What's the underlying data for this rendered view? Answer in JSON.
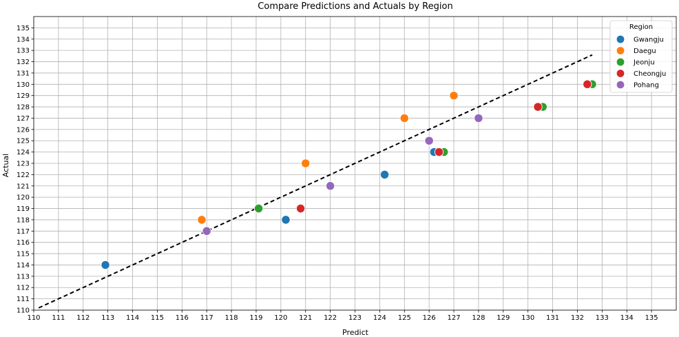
{
  "chart_data": {
    "type": "scatter",
    "title": "Compare Predictions and Actuals by Region",
    "xlabel": "Predict",
    "ylabel": "Actual",
    "xlim": [
      110,
      136
    ],
    "ylim": [
      110,
      136
    ],
    "xticks": [
      110,
      111,
      112,
      113,
      114,
      115,
      116,
      117,
      118,
      119,
      120,
      121,
      122,
      123,
      124,
      125,
      126,
      127,
      128,
      129,
      130,
      131,
      132,
      133,
      134,
      135
    ],
    "yticks": [
      110,
      111,
      112,
      113,
      114,
      115,
      116,
      117,
      118,
      119,
      120,
      121,
      122,
      123,
      124,
      125,
      126,
      127,
      128,
      129,
      130,
      131,
      132,
      133,
      134,
      135
    ],
    "grid": true,
    "legend": {
      "title": "Region",
      "placement": "top-right"
    },
    "reference_line": {
      "style": "dashed",
      "color": "#000000",
      "from": [
        110.2,
        110.2
      ],
      "to": [
        132.6,
        132.6
      ]
    },
    "series": [
      {
        "name": "Gwangju",
        "color": "#1f77b4",
        "points": [
          {
            "x": 112.9,
            "y": 114
          },
          {
            "x": 120.2,
            "y": 118
          },
          {
            "x": 124.2,
            "y": 122
          },
          {
            "x": 126.2,
            "y": 124
          }
        ]
      },
      {
        "name": "Daegu",
        "color": "#ff7f0e",
        "points": [
          {
            "x": 116.8,
            "y": 118
          },
          {
            "x": 121.0,
            "y": 123
          },
          {
            "x": 125.0,
            "y": 127
          },
          {
            "x": 127.0,
            "y": 129
          }
        ]
      },
      {
        "name": "Jeonju",
        "color": "#2ca02c",
        "points": [
          {
            "x": 119.1,
            "y": 119
          },
          {
            "x": 126.6,
            "y": 124
          },
          {
            "x": 130.6,
            "y": 128
          },
          {
            "x": 132.6,
            "y": 130
          }
        ]
      },
      {
        "name": "Cheongju",
        "color": "#d62728",
        "points": [
          {
            "x": 120.8,
            "y": 119
          },
          {
            "x": 126.4,
            "y": 124
          },
          {
            "x": 130.4,
            "y": 128
          },
          {
            "x": 132.4,
            "y": 130
          }
        ]
      },
      {
        "name": "Pohang",
        "color": "#9467bd",
        "points": [
          {
            "x": 117.0,
            "y": 117
          },
          {
            "x": 122.0,
            "y": 121
          },
          {
            "x": 126.0,
            "y": 125
          },
          {
            "x": 128.0,
            "y": 127
          }
        ]
      }
    ]
  }
}
